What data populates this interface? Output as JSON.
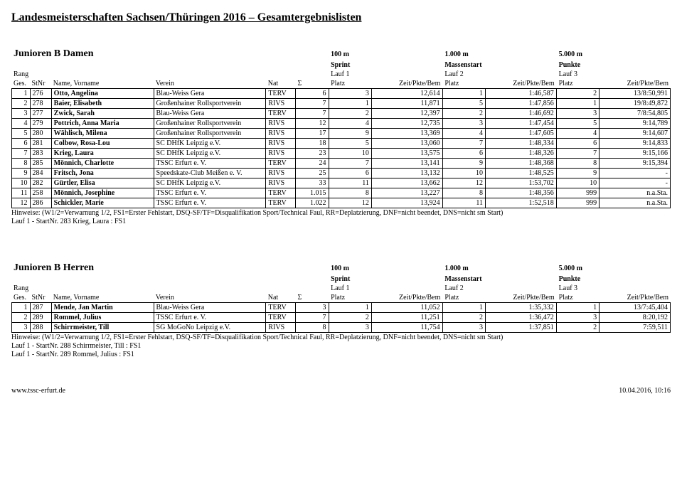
{
  "page_title": "Landesmeisterschaften Sachsen/Thüringen 2016 – Gesamtergebnislisten",
  "group_a": {
    "title": "Junioren B Damen",
    "events": [
      {
        "dist": "100 m",
        "type": "Sprint",
        "lauf": "Lauf 1"
      },
      {
        "dist": "1.000 m",
        "type": "Massenstart",
        "lauf": "Lauf 2"
      },
      {
        "dist": "5.000 m",
        "type": "Punkte",
        "lauf": "Lauf 3"
      }
    ],
    "cols": {
      "rang": "Rang Ges.",
      "stnr": "StNr",
      "name": "Name, Vorname",
      "verein": "Verein",
      "nat": "Nat",
      "sigma": "Σ",
      "platz": "Platz",
      "zeit": "Zeit/Pkte/Bem"
    },
    "rows": [
      {
        "rg": "1",
        "st": "276",
        "nm": "Otto, Angelina",
        "vn": "Blau-Weiss Gera",
        "nat": "TERV",
        "s": "6",
        "p1": "3",
        "z1": "12,614",
        "p2": "1",
        "z2": "1:46,587",
        "p3": "2",
        "z3": "13/8:50,991"
      },
      {
        "rg": "2",
        "st": "278",
        "nm": "Baier, Elisabeth",
        "vn": "Großenhainer Rollsportverein",
        "nat": "RIVS",
        "s": "7",
        "p1": "1",
        "z1": "11,871",
        "p2": "5",
        "z2": "1:47,856",
        "p3": "1",
        "z3": "19/8:49,872"
      },
      {
        "rg": "3",
        "st": "277",
        "nm": "Zwick, Sarah",
        "vn": "Blau-Weiss Gera",
        "nat": "TERV",
        "s": "7",
        "p1": "2",
        "z1": "12,397",
        "p2": "2",
        "z2": "1:46,692",
        "p3": "3",
        "z3": "7/8:54,805"
      },
      {
        "rg": "4",
        "st": "279",
        "nm": "Pottrich, Anna Maria",
        "vn": "Großenhainer Rollsportverein",
        "nat": "RIVS",
        "s": "12",
        "p1": "4",
        "z1": "12,735",
        "p2": "3",
        "z2": "1:47,454",
        "p3": "5",
        "z3": "9:14,789"
      },
      {
        "rg": "5",
        "st": "280",
        "nm": "Wählisch, Milena",
        "vn": "Großenhainer Rollsportverein",
        "nat": "RIVS",
        "s": "17",
        "p1": "9",
        "z1": "13,369",
        "p2": "4",
        "z2": "1:47,605",
        "p3": "4",
        "z3": "9:14,607"
      },
      {
        "rg": "6",
        "st": "281",
        "nm": "Colbow, Rosa-Lou",
        "vn": "SC DHfK Leipzig e.V.",
        "nat": "RIVS",
        "s": "18",
        "p1": "5",
        "z1": "13,060",
        "p2": "7",
        "z2": "1:48,334",
        "p3": "6",
        "z3": "9:14,833"
      },
      {
        "rg": "7",
        "st": "283",
        "nm": "Krieg, Laura",
        "vn": "SC DHfK Leipzig e.V.",
        "nat": "RIVS",
        "s": "23",
        "p1": "10",
        "z1": "13,575",
        "p2": "6",
        "z2": "1:48,326",
        "p3": "7",
        "z3": "9:15,166"
      },
      {
        "rg": "8",
        "st": "285",
        "nm": "Mönnich, Charlotte",
        "vn": "TSSC Erfurt e. V.",
        "nat": "TERV",
        "s": "24",
        "p1": "7",
        "z1": "13,141",
        "p2": "9",
        "z2": "1:48,368",
        "p3": "8",
        "z3": "9:15,394"
      },
      {
        "rg": "9",
        "st": "284",
        "nm": "Fritsch, Jona",
        "vn": "Speedskate-Club Meißen e. V.",
        "nat": "RIVS",
        "s": "25",
        "p1": "6",
        "z1": "13,132",
        "p2": "10",
        "z2": "1:48,525",
        "p3": "9",
        "z3": "-"
      },
      {
        "rg": "10",
        "st": "282",
        "nm": "Gürtler, Elisa",
        "vn": "SC DHfK Leipzig e.V.",
        "nat": "RIVS",
        "s": "33",
        "p1": "11",
        "z1": "13,662",
        "p2": "12",
        "z2": "1:53,702",
        "p3": "10",
        "z3": "-"
      },
      {
        "rg": "11",
        "st": "258",
        "nm": "Mönnich, Josephine",
        "vn": "TSSC Erfurt e. V.",
        "nat": "TERV",
        "s": "1.015",
        "p1": "8",
        "z1": "13,227",
        "p2": "8",
        "z2": "1:48,356",
        "p3": "999",
        "z3": "n.a.Sta."
      },
      {
        "rg": "12",
        "st": "286",
        "nm": "Schickler, Marie",
        "vn": "TSSC Erfurt e. V.",
        "nat": "TERV",
        "s": "1.022",
        "p1": "12",
        "z1": "13,924",
        "p2": "11",
        "z2": "1:52,518",
        "p3": "999",
        "z3": "n.a.Sta."
      }
    ],
    "hints": [
      "Hinweise: (W1/2=Verwarnung 1/2, FS1=Erster Fehlstart, DSQ-SF/TF=Disqualifikation Sport/Technical Faul, RR=Deplatzierung, DNF=nicht beendet, DNS=nicht sm Start)",
      "Lauf 1 - StartNr. 283 Krieg, Laura : FS1"
    ]
  },
  "group_b": {
    "title": "Junioren B Herren",
    "events": [
      {
        "dist": "100 m",
        "type": "Sprint",
        "lauf": "Lauf 1"
      },
      {
        "dist": "1.000 m",
        "type": "Massenstart",
        "lauf": "Lauf 2"
      },
      {
        "dist": "5.000 m",
        "type": "Punkte",
        "lauf": "Lauf 3"
      }
    ],
    "cols": {
      "rang": "Rang Ges.",
      "stnr": "StNr",
      "name": "Name, Vorname",
      "verein": "Verein",
      "nat": "Nat",
      "sigma": "Σ",
      "platz": "Platz",
      "zeit": "Zeit/Pkte/Bem"
    },
    "rows": [
      {
        "rg": "1",
        "st": "287",
        "nm": "Mende, Jan Martin",
        "vn": "Blau-Weiss Gera",
        "nat": "TERV",
        "s": "3",
        "p1": "1",
        "z1": "11,052",
        "p2": "1",
        "z2": "1:35,332",
        "p3": "1",
        "z3": "13/7:45,404"
      },
      {
        "rg": "2",
        "st": "289",
        "nm": "Rommel, Julius",
        "vn": "TSSC Erfurt e. V.",
        "nat": "TERV",
        "s": "7",
        "p1": "2",
        "z1": "11,251",
        "p2": "2",
        "z2": "1:36,472",
        "p3": "3",
        "z3": "8:20,192"
      },
      {
        "rg": "3",
        "st": "288",
        "nm": "Schirrmeister, Till",
        "vn": "SG MoGoNo Leipzig e.V.",
        "nat": "RIVS",
        "s": "8",
        "p1": "3",
        "z1": "11,754",
        "p2": "3",
        "z2": "1:37,851",
        "p3": "2",
        "z3": "7:59,511"
      }
    ],
    "hints": [
      "Hinweise: (W1/2=Verwarnung 1/2, FS1=Erster Fehlstart, DSQ-SF/TF=Disqualifikation Sport/Technical Faul, RR=Deplatzierung, DNF=nicht beendet, DNS=nicht sm Start)",
      "Lauf 1 - StartNr. 288 Schirrmeister, Till : FS1",
      "Lauf 1 - StartNr. 289 Rommel, Julius : FS1"
    ]
  },
  "footer_left": "www.tssc-erfurt.de",
  "footer_right": "10.04.2016, 10:16"
}
